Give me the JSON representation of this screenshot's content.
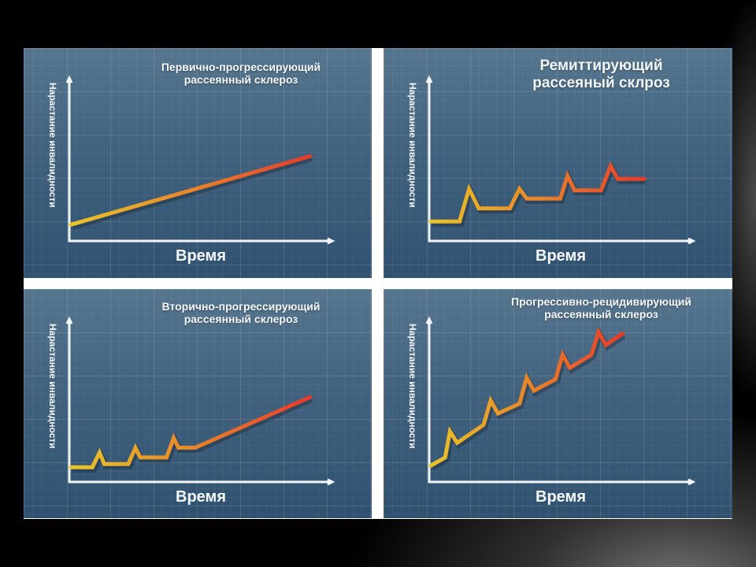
{
  "slide": {
    "background": "#000000",
    "panel_colors": {
      "top": "#56768f",
      "bottom": "#2f5170",
      "separator": "#ffffff"
    }
  },
  "chart_data": [
    {
      "type": "line",
      "title": "Первично-прогрессирующий рассеянный склероз",
      "title_lines": [
        "Первично-прогрессирующий",
        "рассеянный склероз"
      ],
      "xlabel": "Время",
      "ylabel": "Нарастание инвалидности",
      "x": [
        0,
        100
      ],
      "values": [
        10,
        52
      ],
      "xlim": [
        0,
        110
      ],
      "ylim": [
        0,
        100
      ],
      "color_gradient": [
        "#e8c52a",
        "#e83a2a"
      ],
      "grid": true
    },
    {
      "type": "line",
      "title": "Ремиттирующий рассеяный склроз",
      "title_lines": [
        "Ремиттирующий",
        "рассеяный склроз"
      ],
      "xlabel": "Время",
      "ylabel": "Нарастание инвалидности",
      "x": [
        0,
        12,
        16,
        20,
        33,
        37,
        40,
        54,
        57,
        60,
        71,
        75,
        78,
        89
      ],
      "values": [
        12,
        12,
        32,
        20,
        20,
        32,
        26,
        26,
        40,
        31,
        31,
        46,
        38,
        38
      ],
      "xlim": [
        0,
        110
      ],
      "ylim": [
        0,
        100
      ],
      "color_gradient": [
        "#e8c52a",
        "#e83a2a"
      ],
      "grid": true
    },
    {
      "type": "line",
      "title": "Вторично-прогрессирующий рассеянный склероз",
      "title_lines": [
        "Вторично-прогрессирующий",
        "рассеянный склероз"
      ],
      "xlabel": "Время",
      "ylabel": "Нарастание инвалидности",
      "x": [
        0,
        9,
        12,
        14,
        24,
        27,
        29,
        40,
        43,
        45,
        52,
        100
      ],
      "values": [
        9,
        9,
        18,
        11,
        11,
        21,
        15,
        15,
        27,
        21,
        21,
        52
      ],
      "xlim": [
        0,
        110
      ],
      "ylim": [
        0,
        100
      ],
      "color_gradient": [
        "#e8c52a",
        "#e83a2a"
      ],
      "grid": true
    },
    {
      "type": "line",
      "title": "Прогрессивно-рецидивирующий рассеянный склероз",
      "title_lines": [
        "Прогрессивно-рецидивирующий",
        "рассеянный склероз"
      ],
      "xlabel": "Время",
      "ylabel": "Нарастание инвалидности",
      "x": [
        0,
        6,
        8,
        11,
        22,
        25,
        28,
        37,
        40,
        43,
        52,
        55,
        58,
        67,
        70,
        73,
        80
      ],
      "values": [
        10,
        15,
        31,
        24,
        35,
        50,
        42,
        48,
        64,
        56,
        63,
        78,
        70,
        78,
        92,
        84,
        91
      ],
      "xlim": [
        0,
        110
      ],
      "ylim": [
        0,
        100
      ],
      "color_gradient": [
        "#e8c52a",
        "#e83a2a"
      ],
      "grid": true
    }
  ]
}
